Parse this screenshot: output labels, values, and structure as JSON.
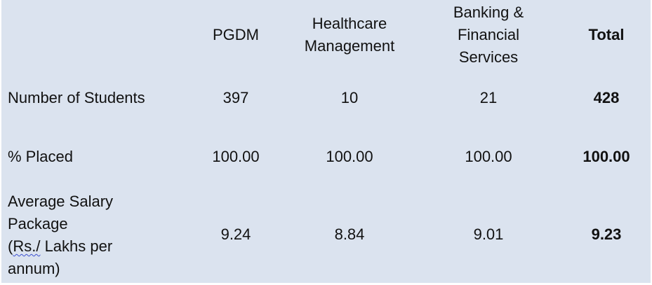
{
  "columns": [
    "PGDM",
    "Healthcare Management",
    "Banking & Financial Services",
    "Total"
  ],
  "column_lines": [
    [
      "PGDM"
    ],
    [
      "Healthcare",
      "Management"
    ],
    [
      "Banking &",
      "Financial",
      "Services"
    ],
    [
      "Total"
    ]
  ],
  "rows": [
    {
      "label": "Number of Students",
      "values": [
        "397",
        "10",
        "21",
        "428"
      ]
    },
    {
      "label": "% Placed",
      "values": [
        "100.00",
        "100.00",
        "100.00",
        "100.00"
      ]
    },
    {
      "label_lines": [
        "Average Salary",
        "Package",
        "(Rs./ Lakhs per",
        "annum)"
      ],
      "label_underlined": "Rs./",
      "label_line3_rest": " Lakhs per",
      "values": [
        "9.24",
        "8.84",
        "9.01",
        "9.23"
      ]
    }
  ],
  "background_color": "#dbe3ef"
}
